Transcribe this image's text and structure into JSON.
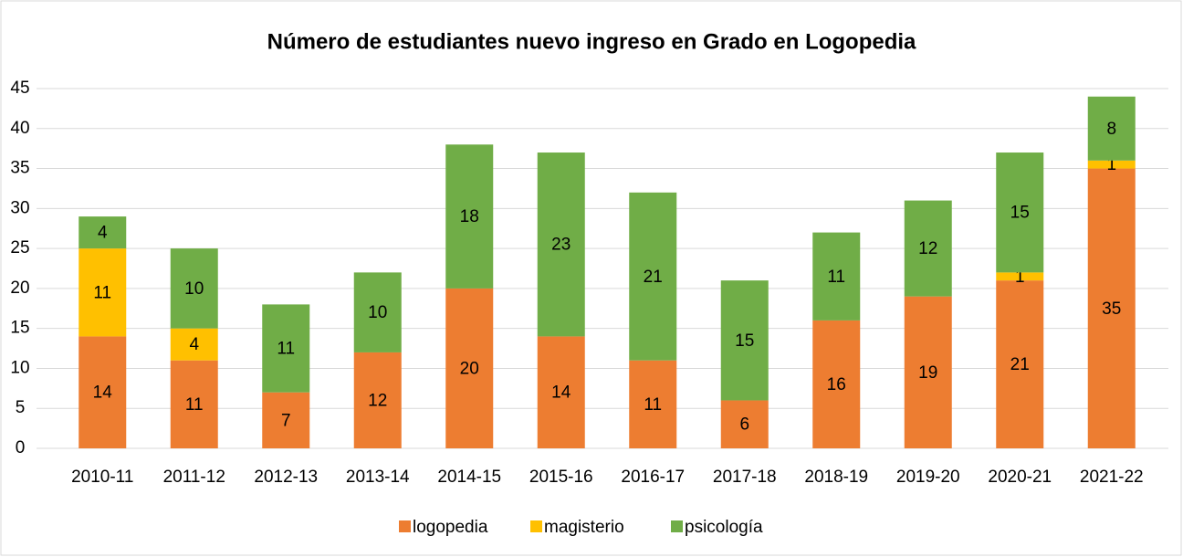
{
  "chart_data": {
    "type": "stacked_bar",
    "title": "Número de estudiantes nuevo ingreso en Grado en Logopedia",
    "categories": [
      "2010-11",
      "2011-12",
      "2012-13",
      "2013-14",
      "2014-15",
      "2015-16",
      "2016-17",
      "2017-18",
      "2018-19",
      "2019-20",
      "2020-21",
      "2021-22"
    ],
    "series": [
      {
        "name": "logopedia",
        "color": "#ed7d31",
        "values": [
          14,
          11,
          7,
          12,
          20,
          14,
          11,
          6,
          16,
          19,
          21,
          35
        ]
      },
      {
        "name": "magisterio",
        "color": "#ffc000",
        "values": [
          11,
          4,
          0,
          0,
          0,
          0,
          0,
          0,
          0,
          0,
          1,
          1
        ]
      },
      {
        "name": "psicología",
        "color": "#70ad47",
        "values": [
          4,
          10,
          11,
          10,
          18,
          23,
          21,
          15,
          11,
          12,
          15,
          8
        ]
      }
    ],
    "ylim": [
      0,
      45
    ],
    "yticks": [
      0,
      5,
      10,
      15,
      20,
      25,
      30,
      35,
      40,
      45
    ],
    "grid": true,
    "legend": "bottom"
  }
}
